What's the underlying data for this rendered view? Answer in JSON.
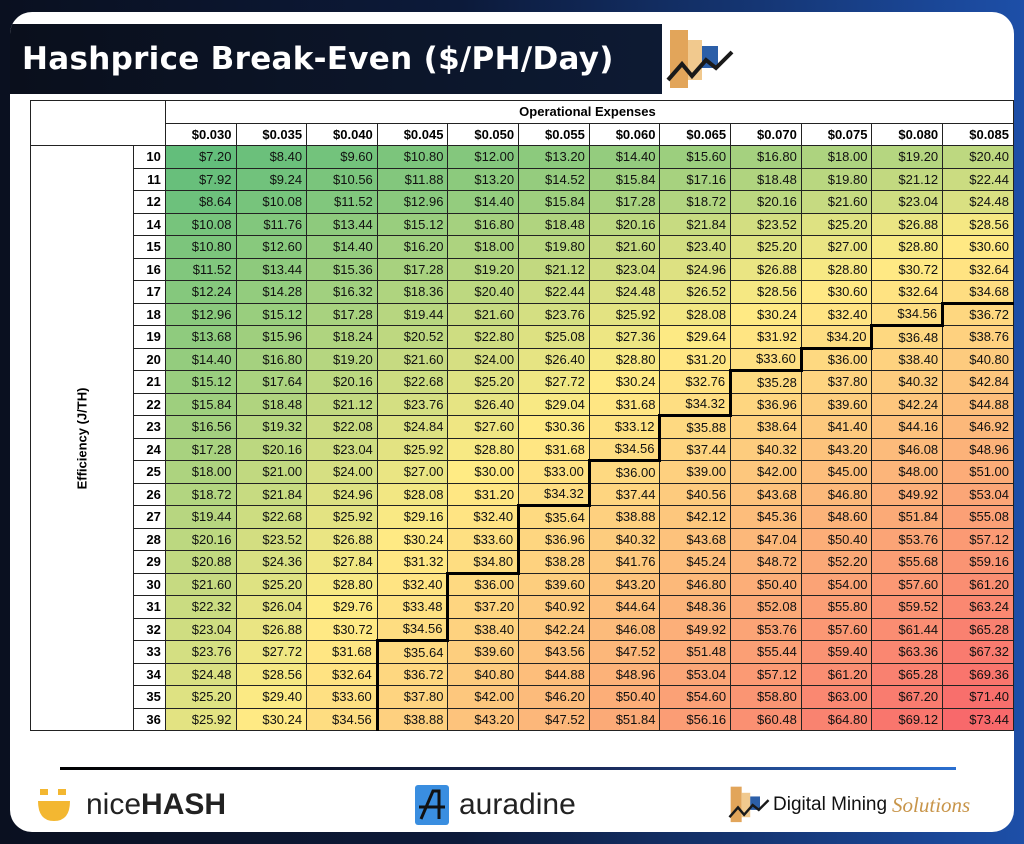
{
  "title": "Hashprice Break-Even ($/PH/Day)",
  "footer": {
    "logos": [
      "niceHASH",
      "auradine",
      "Digital Mining Solutions"
    ],
    "nicehash_a": "nice",
    "nicehash_b": "HASH",
    "auradine": "auradine",
    "dms_a": "Digital Mining",
    "dms_b": "Solutions"
  },
  "chart_data": {
    "type": "heatmap",
    "title": "Hashprice Break-Even ($/PH/Day)",
    "xlabel": "Operational Expenses",
    "ylabel": "Efficiency (J/TH)",
    "x_labels": [
      "$0.030",
      "$0.035",
      "$0.040",
      "$0.045",
      "$0.050",
      "$0.055",
      "$0.060",
      "$0.065",
      "$0.070",
      "$0.075",
      "$0.080",
      "$0.085"
    ],
    "y_labels": [
      "10",
      "11",
      "12",
      "14",
      "15",
      "16",
      "17",
      "18",
      "19",
      "20",
      "21",
      "22",
      "23",
      "24",
      "25",
      "26",
      "27",
      "28",
      "29",
      "30",
      "31",
      "32",
      "33",
      "34",
      "35",
      "36"
    ],
    "color_scale": {
      "low": "#63BE7B",
      "mid": "#FFEB84",
      "high": "#F8696B"
    },
    "values": [
      [
        7.2,
        8.4,
        9.6,
        10.8,
        12,
        13.2,
        14.4,
        15.6,
        16.8,
        18,
        19.2,
        20.4
      ],
      [
        7.92,
        9.24,
        10.56,
        11.88,
        13.2,
        14.52,
        15.84,
        17.16,
        18.48,
        19.8,
        21.12,
        22.44
      ],
      [
        8.64,
        10.08,
        11.52,
        12.96,
        14.4,
        15.84,
        17.28,
        18.72,
        20.16,
        21.6,
        23.04,
        24.48
      ],
      [
        10.08,
        11.76,
        13.44,
        15.12,
        16.8,
        18.48,
        20.16,
        21.84,
        23.52,
        25.2,
        26.88,
        28.56
      ],
      [
        10.8,
        12.6,
        14.4,
        16.2,
        18,
        19.8,
        21.6,
        23.4,
        25.2,
        27,
        28.8,
        30.6
      ],
      [
        11.52,
        13.44,
        15.36,
        17.28,
        19.2,
        21.12,
        23.04,
        24.96,
        26.88,
        28.8,
        30.72,
        32.64
      ],
      [
        12.24,
        14.28,
        16.32,
        18.36,
        20.4,
        22.44,
        24.48,
        26.52,
        28.56,
        30.6,
        32.64,
        34.68
      ],
      [
        12.96,
        15.12,
        17.28,
        19.44,
        21.6,
        23.76,
        25.92,
        28.08,
        30.24,
        32.4,
        34.56,
        36.72
      ],
      [
        13.68,
        15.96,
        18.24,
        20.52,
        22.8,
        25.08,
        27.36,
        29.64,
        31.92,
        34.2,
        36.48,
        38.76
      ],
      [
        14.4,
        16.8,
        19.2,
        21.6,
        24,
        26.4,
        28.8,
        31.2,
        33.6,
        36,
        38.4,
        40.8
      ],
      [
        15.12,
        17.64,
        20.16,
        22.68,
        25.2,
        27.72,
        30.24,
        32.76,
        35.28,
        37.8,
        40.32,
        42.84
      ],
      [
        15.84,
        18.48,
        21.12,
        23.76,
        26.4,
        29.04,
        31.68,
        34.32,
        36.96,
        39.6,
        42.24,
        44.88
      ],
      [
        16.56,
        19.32,
        22.08,
        24.84,
        27.6,
        30.36,
        33.12,
        35.88,
        38.64,
        41.4,
        44.16,
        46.92
      ],
      [
        17.28,
        20.16,
        23.04,
        25.92,
        28.8,
        31.68,
        34.56,
        37.44,
        40.32,
        43.2,
        46.08,
        48.96
      ],
      [
        18,
        21,
        24,
        27,
        30,
        33,
        36,
        39,
        42,
        45,
        48,
        51
      ],
      [
        18.72,
        21.84,
        24.96,
        28.08,
        31.2,
        34.32,
        37.44,
        40.56,
        43.68,
        46.8,
        49.92,
        53.04
      ],
      [
        19.44,
        22.68,
        25.92,
        29.16,
        32.4,
        35.64,
        38.88,
        42.12,
        45.36,
        48.6,
        51.84,
        55.08
      ],
      [
        20.16,
        23.52,
        26.88,
        30.24,
        33.6,
        36.96,
        40.32,
        43.68,
        47.04,
        50.4,
        53.76,
        57.12
      ],
      [
        20.88,
        24.36,
        27.84,
        31.32,
        34.8,
        38.28,
        41.76,
        45.24,
        48.72,
        52.2,
        55.68,
        59.16
      ],
      [
        21.6,
        25.2,
        28.8,
        32.4,
        36,
        39.6,
        43.2,
        46.8,
        50.4,
        54,
        57.6,
        61.2
      ],
      [
        22.32,
        26.04,
        29.76,
        33.48,
        37.2,
        40.92,
        44.64,
        48.36,
        52.08,
        55.8,
        59.52,
        63.24
      ],
      [
        23.04,
        26.88,
        30.72,
        34.56,
        38.4,
        42.24,
        46.08,
        49.92,
        53.76,
        57.6,
        61.44,
        65.28
      ],
      [
        23.76,
        27.72,
        31.68,
        35.64,
        39.6,
        43.56,
        47.52,
        51.48,
        55.44,
        59.4,
        63.36,
        67.32
      ],
      [
        24.48,
        28.56,
        32.64,
        36.72,
        40.8,
        44.88,
        48.96,
        53.04,
        57.12,
        61.2,
        65.28,
        69.36
      ],
      [
        25.2,
        29.4,
        33.6,
        37.8,
        42,
        46.2,
        50.4,
        54.6,
        58.8,
        63,
        67.2,
        71.4
      ],
      [
        25.92,
        30.24,
        34.56,
        38.88,
        43.2,
        47.52,
        51.84,
        56.16,
        60.48,
        64.8,
        69.12,
        73.44
      ]
    ]
  }
}
